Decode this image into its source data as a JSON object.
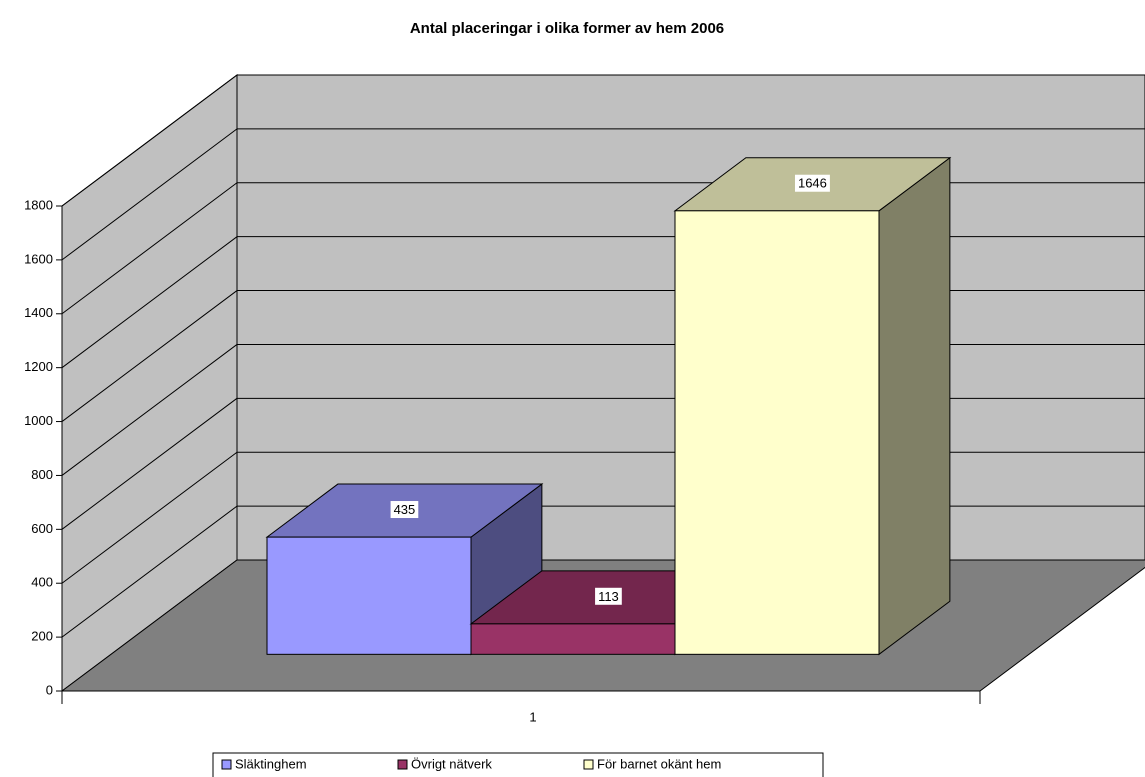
{
  "chart_data": {
    "type": "bar3d",
    "title": "Antal placeringar i olika former av hem 2006",
    "categories": [
      "1"
    ],
    "series": [
      {
        "name": "Släktinghem",
        "color": "#9999ff",
        "values": [
          435
        ]
      },
      {
        "name": "Övrigt nätverk",
        "color": "#993366",
        "values": [
          113
        ]
      },
      {
        "name": "För barnet okänt hem",
        "color": "#ffffcc",
        "values": [
          1646
        ]
      }
    ],
    "ylim": [
      0,
      1800
    ],
    "yticks": [
      0,
      200,
      400,
      600,
      800,
      1000,
      1200,
      1400,
      1600,
      1800
    ],
    "grid": true,
    "legend": "bottom"
  }
}
